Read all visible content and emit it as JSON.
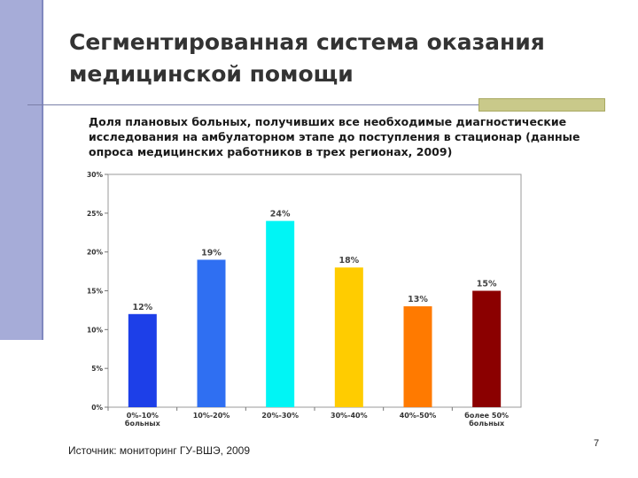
{
  "slide": {
    "title": "Сегментированная система оказания медицинской помощи",
    "subtitle": "Доля плановых больных, получивших все необходимые диагностические исследования на амбулаторном этапе до поступления в стационар (данные опроса медицинских работников в трех регионах, 2009)",
    "source": "Источник: мониторинг ГУ-ВШЭ, 2009",
    "page_number": "7"
  },
  "colors": {
    "left_bar": "#a6acd8",
    "accent_box": "#c9c98a"
  },
  "chart_data": {
    "type": "bar",
    "title": "",
    "xlabel": "",
    "ylabel": "",
    "categories": [
      [
        "0%-10%",
        "больных"
      ],
      [
        "10%-20%"
      ],
      [
        "20%-30%"
      ],
      [
        "30%-40%"
      ],
      [
        "40%-50%"
      ],
      [
        "более 50%",
        "больных"
      ]
    ],
    "values": [
      12,
      19,
      24,
      18,
      13,
      15
    ],
    "value_labels": [
      "12%",
      "19%",
      "24%",
      "18%",
      "13%",
      "15%"
    ],
    "bar_colors": [
      "#1d3fe8",
      "#2f6ff2",
      "#00f5f5",
      "#ffcc00",
      "#ff7a00",
      "#8b0000"
    ],
    "yticks": [
      "0%",
      "5%",
      "10%",
      "15%",
      "20%",
      "25%",
      "30%"
    ],
    "ylim": [
      0,
      30
    ],
    "grid": false,
    "legend": "none"
  }
}
